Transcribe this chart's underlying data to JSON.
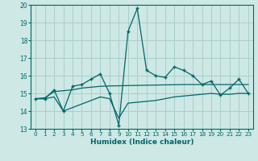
{
  "xlabel": "Humidex (Indice chaleur)",
  "xlim": [
    -0.5,
    23.5
  ],
  "ylim": [
    13,
    20
  ],
  "yticks": [
    13,
    14,
    15,
    16,
    17,
    18,
    19,
    20
  ],
  "xticks": [
    0,
    1,
    2,
    3,
    4,
    5,
    6,
    7,
    8,
    9,
    10,
    11,
    12,
    13,
    14,
    15,
    16,
    17,
    18,
    19,
    20,
    21,
    22,
    23
  ],
  "bg_color": "#cde8e5",
  "grid_color": "#aacfcc",
  "line_color": "#006666",
  "series": [
    [
      14.7,
      14.7,
      15.2,
      14.0,
      15.4,
      15.5,
      15.8,
      16.1,
      15.0,
      13.2,
      18.5,
      19.8,
      16.3,
      16.0,
      15.9,
      16.5,
      16.3,
      16.0,
      15.5,
      15.7,
      14.9,
      15.3,
      15.8,
      15.0
    ],
    [
      14.7,
      14.75,
      15.1,
      15.15,
      15.2,
      15.3,
      15.35,
      15.4,
      15.42,
      15.43,
      15.44,
      15.45,
      15.46,
      15.47,
      15.48,
      15.49,
      15.5,
      15.5,
      15.5,
      15.5,
      15.5,
      15.5,
      15.5,
      15.5
    ],
    [
      14.7,
      14.7,
      14.8,
      14.0,
      14.2,
      14.4,
      14.6,
      14.8,
      14.7,
      13.6,
      14.45,
      14.5,
      14.55,
      14.6,
      14.7,
      14.8,
      14.85,
      14.9,
      14.95,
      15.0,
      14.95,
      14.95,
      15.0,
      15.0
    ]
  ]
}
